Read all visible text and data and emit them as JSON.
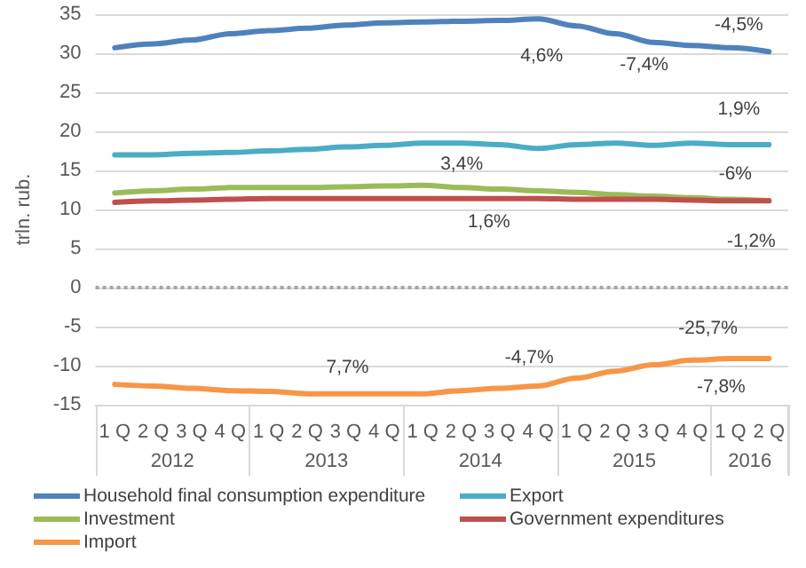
{
  "chart_data": {
    "type": "line",
    "ylabel": "trln. rub.",
    "categories": [
      "1 Q",
      "2 Q",
      "3 Q",
      "4 Q",
      "1 Q",
      "2 Q",
      "3 Q",
      "4 Q",
      "1 Q",
      "2 Q",
      "3 Q",
      "4 Q",
      "1 Q",
      "2 Q",
      "3 Q",
      "4 Q",
      "1 Q",
      "2 Q"
    ],
    "annotations": [
      "2012",
      "2013",
      "2014",
      "2015",
      "2016",
      "4,6%",
      "-7,4%",
      "-4,5%",
      "1,9%",
      "3,4%",
      "-6%",
      "1,6%",
      "-1,2%",
      "7,7%",
      "-4,7%",
      "-25,7%",
      "-7,8%"
    ],
    "ylim": [
      -15,
      35
    ],
    "yticks": [
      -15,
      -10,
      -5,
      0,
      5,
      10,
      15,
      20,
      25,
      30,
      35
    ],
    "grid": "y",
    "legend": "bottom",
    "marker": "none",
    "line_style": "solid",
    "ref_lines": [
      {
        "axis": "y",
        "value": 0,
        "color": "#a6a6a6",
        "line_style": "dotted"
      }
    ],
    "series": [
      {
        "name": "Household final consumption expenditure",
        "color": "#4f81bd",
        "values": [
          30.7,
          31.2,
          31.7,
          32.5,
          32.9,
          33.2,
          33.6,
          33.9,
          34.0,
          34.1,
          34.2,
          34.4,
          33.5,
          32.5,
          31.4,
          31.0,
          30.7,
          30.2
        ]
      },
      {
        "name": "Export",
        "color": "#4bacc6",
        "values": [
          17.0,
          17.0,
          17.2,
          17.3,
          17.5,
          17.7,
          18.0,
          18.2,
          18.5,
          18.5,
          18.3,
          17.8,
          18.3,
          18.5,
          18.2,
          18.5,
          18.3,
          18.3
        ]
      },
      {
        "name": "Investment",
        "color": "#9bbb59",
        "values": [
          12.1,
          12.4,
          12.6,
          12.8,
          12.8,
          12.8,
          12.9,
          13.0,
          13.1,
          12.8,
          12.6,
          12.4,
          12.2,
          11.9,
          11.7,
          11.5,
          11.3,
          11.1
        ]
      },
      {
        "name": "Government expenditures",
        "color": "#c0504d",
        "values": [
          10.9,
          11.1,
          11.2,
          11.3,
          11.4,
          11.4,
          11.4,
          11.4,
          11.4,
          11.4,
          11.4,
          11.4,
          11.3,
          11.3,
          11.3,
          11.2,
          11.1,
          11.1
        ]
      },
      {
        "name": "Import",
        "color": "#f79646",
        "values": [
          -12.4,
          -12.6,
          -12.9,
          -13.2,
          -13.3,
          -13.6,
          -13.6,
          -13.6,
          -13.6,
          -13.2,
          -12.9,
          -12.6,
          -11.6,
          -10.7,
          -9.9,
          -9.3,
          -9.1,
          -9.1
        ]
      }
    ]
  }
}
